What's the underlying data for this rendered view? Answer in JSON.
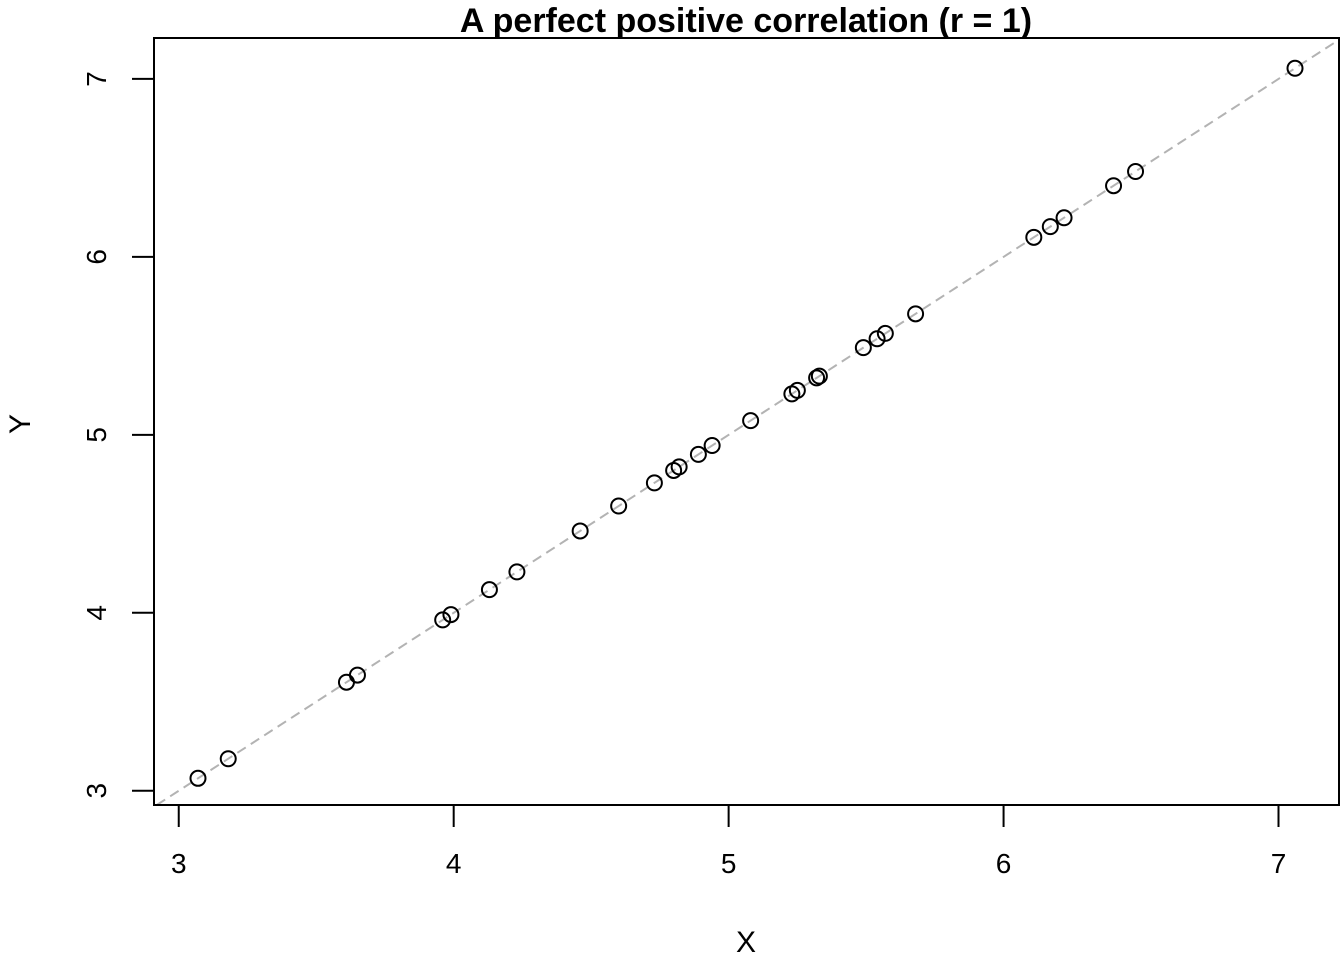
{
  "chart_data": {
    "type": "scatter",
    "title": "A perfect positive correlation (r = 1)",
    "xlabel": "X",
    "ylabel": "Y",
    "xlim": [
      2.91,
      7.22
    ],
    "ylim": [
      2.92,
      7.23
    ],
    "xticks": [
      3,
      4,
      5,
      6,
      7
    ],
    "yticks": [
      3,
      4,
      5,
      6,
      7
    ],
    "grid": false,
    "legend": "none",
    "marker": "open-circle",
    "colors": {
      "points": "#000000",
      "reference_line": "#b3b3b3",
      "axes": "#000000"
    },
    "reference_line": {
      "style": "dashed",
      "intercept": 0,
      "slope": 1
    },
    "series": [
      {
        "x": [
          3.07,
          3.18,
          3.61,
          3.65,
          3.96,
          3.99,
          4.13,
          4.23,
          4.46,
          4.6,
          4.73,
          4.8,
          4.82,
          4.89,
          4.94,
          5.08,
          5.23,
          5.25,
          5.32,
          5.33,
          5.49,
          5.54,
          5.57,
          5.68,
          6.11,
          6.17,
          6.22,
          6.4,
          6.48,
          7.06
        ],
        "y": [
          3.07,
          3.18,
          3.61,
          3.65,
          3.96,
          3.99,
          4.13,
          4.23,
          4.46,
          4.6,
          4.73,
          4.8,
          4.82,
          4.89,
          4.94,
          5.08,
          5.23,
          5.25,
          5.32,
          5.33,
          5.49,
          5.54,
          5.57,
          5.68,
          6.11,
          6.17,
          6.22,
          6.4,
          6.48,
          7.06
        ]
      }
    ]
  }
}
